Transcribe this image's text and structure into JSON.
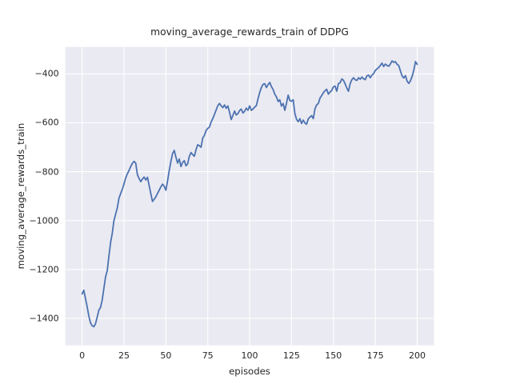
{
  "figure": {
    "title": "moving_average_rewards_train of DDPG"
  },
  "chart_data": {
    "type": "line",
    "title": "moving_average_rewards_train of DDPG",
    "xlabel": "episodes",
    "ylabel": "moving_average_rewards_train",
    "xlim": [
      -10,
      210
    ],
    "ylim": [
      -1510,
      -290
    ],
    "grid": true,
    "legend_position": "none",
    "x_ticks": [
      0,
      25,
      50,
      75,
      100,
      125,
      150,
      175,
      200
    ],
    "x_tick_labels": [
      "0",
      "25",
      "50",
      "75",
      "100",
      "125",
      "150",
      "175",
      "200"
    ],
    "y_ticks": [
      -400,
      -600,
      -800,
      -1000,
      -1200,
      -1400
    ],
    "y_tick_labels": [
      "−400",
      "−600",
      "−800",
      "−1000",
      "−1200",
      "−1400"
    ],
    "colors": {
      "line": "#4c72b0",
      "plot_background": "#eaeaf2",
      "gridline": "#ffffff",
      "figure_background": "#ffffff",
      "text": "#262626"
    },
    "series": [
      {
        "name": "moving_average_rewards_train",
        "x": [
          0,
          1,
          2,
          3,
          4,
          5,
          6,
          7,
          8,
          9,
          10,
          11,
          12,
          13,
          14,
          15,
          16,
          17,
          18,
          19,
          20,
          21,
          22,
          23,
          24,
          25,
          26,
          27,
          28,
          29,
          30,
          31,
          32,
          33,
          34,
          35,
          36,
          37,
          38,
          39,
          40,
          41,
          42,
          43,
          44,
          45,
          46,
          47,
          48,
          49,
          50,
          51,
          52,
          53,
          54,
          55,
          56,
          57,
          58,
          59,
          60,
          61,
          62,
          63,
          64,
          65,
          66,
          67,
          68,
          69,
          70,
          71,
          72,
          73,
          74,
          75,
          76,
          77,
          78,
          79,
          80,
          81,
          82,
          83,
          84,
          85,
          86,
          87,
          88,
          89,
          90,
          91,
          92,
          93,
          94,
          95,
          96,
          97,
          98,
          99,
          100,
          101,
          102,
          103,
          104,
          105,
          106,
          107,
          108,
          109,
          110,
          111,
          112,
          113,
          114,
          115,
          116,
          117,
          118,
          119,
          120,
          121,
          122,
          123,
          124,
          125,
          126,
          127,
          128,
          129,
          130,
          131,
          132,
          133,
          134,
          135,
          136,
          137,
          138,
          139,
          140,
          141,
          142,
          143,
          144,
          145,
          146,
          147,
          148,
          149,
          150,
          151,
          152,
          153,
          154,
          155,
          156,
          157,
          158,
          159,
          160,
          161,
          162,
          163,
          164,
          165,
          166,
          167,
          168,
          169,
          170,
          171,
          172,
          173,
          174,
          175,
          176,
          177,
          178,
          179,
          180,
          181,
          182,
          183,
          184,
          185,
          186,
          187,
          188,
          189,
          190,
          191,
          192,
          193,
          194,
          195,
          196,
          197,
          198,
          199,
          200
        ],
        "values": [
          -1300,
          -1285,
          -1318,
          -1352,
          -1390,
          -1418,
          -1430,
          -1434,
          -1422,
          -1395,
          -1366,
          -1355,
          -1325,
          -1277,
          -1230,
          -1205,
          -1145,
          -1090,
          -1052,
          -1000,
          -974,
          -948,
          -908,
          -890,
          -872,
          -850,
          -826,
          -809,
          -795,
          -779,
          -766,
          -758,
          -765,
          -812,
          -828,
          -841,
          -830,
          -822,
          -834,
          -823,
          -856,
          -890,
          -922,
          -913,
          -903,
          -889,
          -876,
          -862,
          -851,
          -860,
          -876,
          -838,
          -796,
          -758,
          -726,
          -713,
          -741,
          -765,
          -748,
          -779,
          -762,
          -755,
          -776,
          -768,
          -737,
          -722,
          -730,
          -737,
          -710,
          -690,
          -694,
          -700,
          -663,
          -651,
          -632,
          -623,
          -618,
          -597,
          -583,
          -566,
          -548,
          -530,
          -521,
          -531,
          -538,
          -527,
          -541,
          -531,
          -557,
          -587,
          -570,
          -552,
          -568,
          -563,
          -550,
          -544,
          -560,
          -553,
          -540,
          -549,
          -531,
          -549,
          -544,
          -536,
          -530,
          -502,
          -476,
          -456,
          -443,
          -440,
          -456,
          -444,
          -435,
          -452,
          -464,
          -483,
          -494,
          -513,
          -506,
          -532,
          -521,
          -549,
          -520,
          -487,
          -509,
          -512,
          -506,
          -562,
          -586,
          -596,
          -583,
          -603,
          -589,
          -601,
          -606,
          -584,
          -577,
          -571,
          -583,
          -543,
          -527,
          -521,
          -499,
          -489,
          -477,
          -469,
          -463,
          -483,
          -474,
          -468,
          -453,
          -450,
          -471,
          -440,
          -436,
          -421,
          -426,
          -441,
          -458,
          -471,
          -440,
          -424,
          -416,
          -424,
          -427,
          -416,
          -422,
          -413,
          -420,
          -424,
          -408,
          -405,
          -416,
          -405,
          -399,
          -386,
          -380,
          -374,
          -366,
          -356,
          -370,
          -360,
          -366,
          -369,
          -360,
          -347,
          -353,
          -350,
          -361,
          -366,
          -388,
          -408,
          -417,
          -407,
          -430,
          -439,
          -428,
          -410,
          -385,
          -350,
          -361
        ]
      }
    ]
  }
}
